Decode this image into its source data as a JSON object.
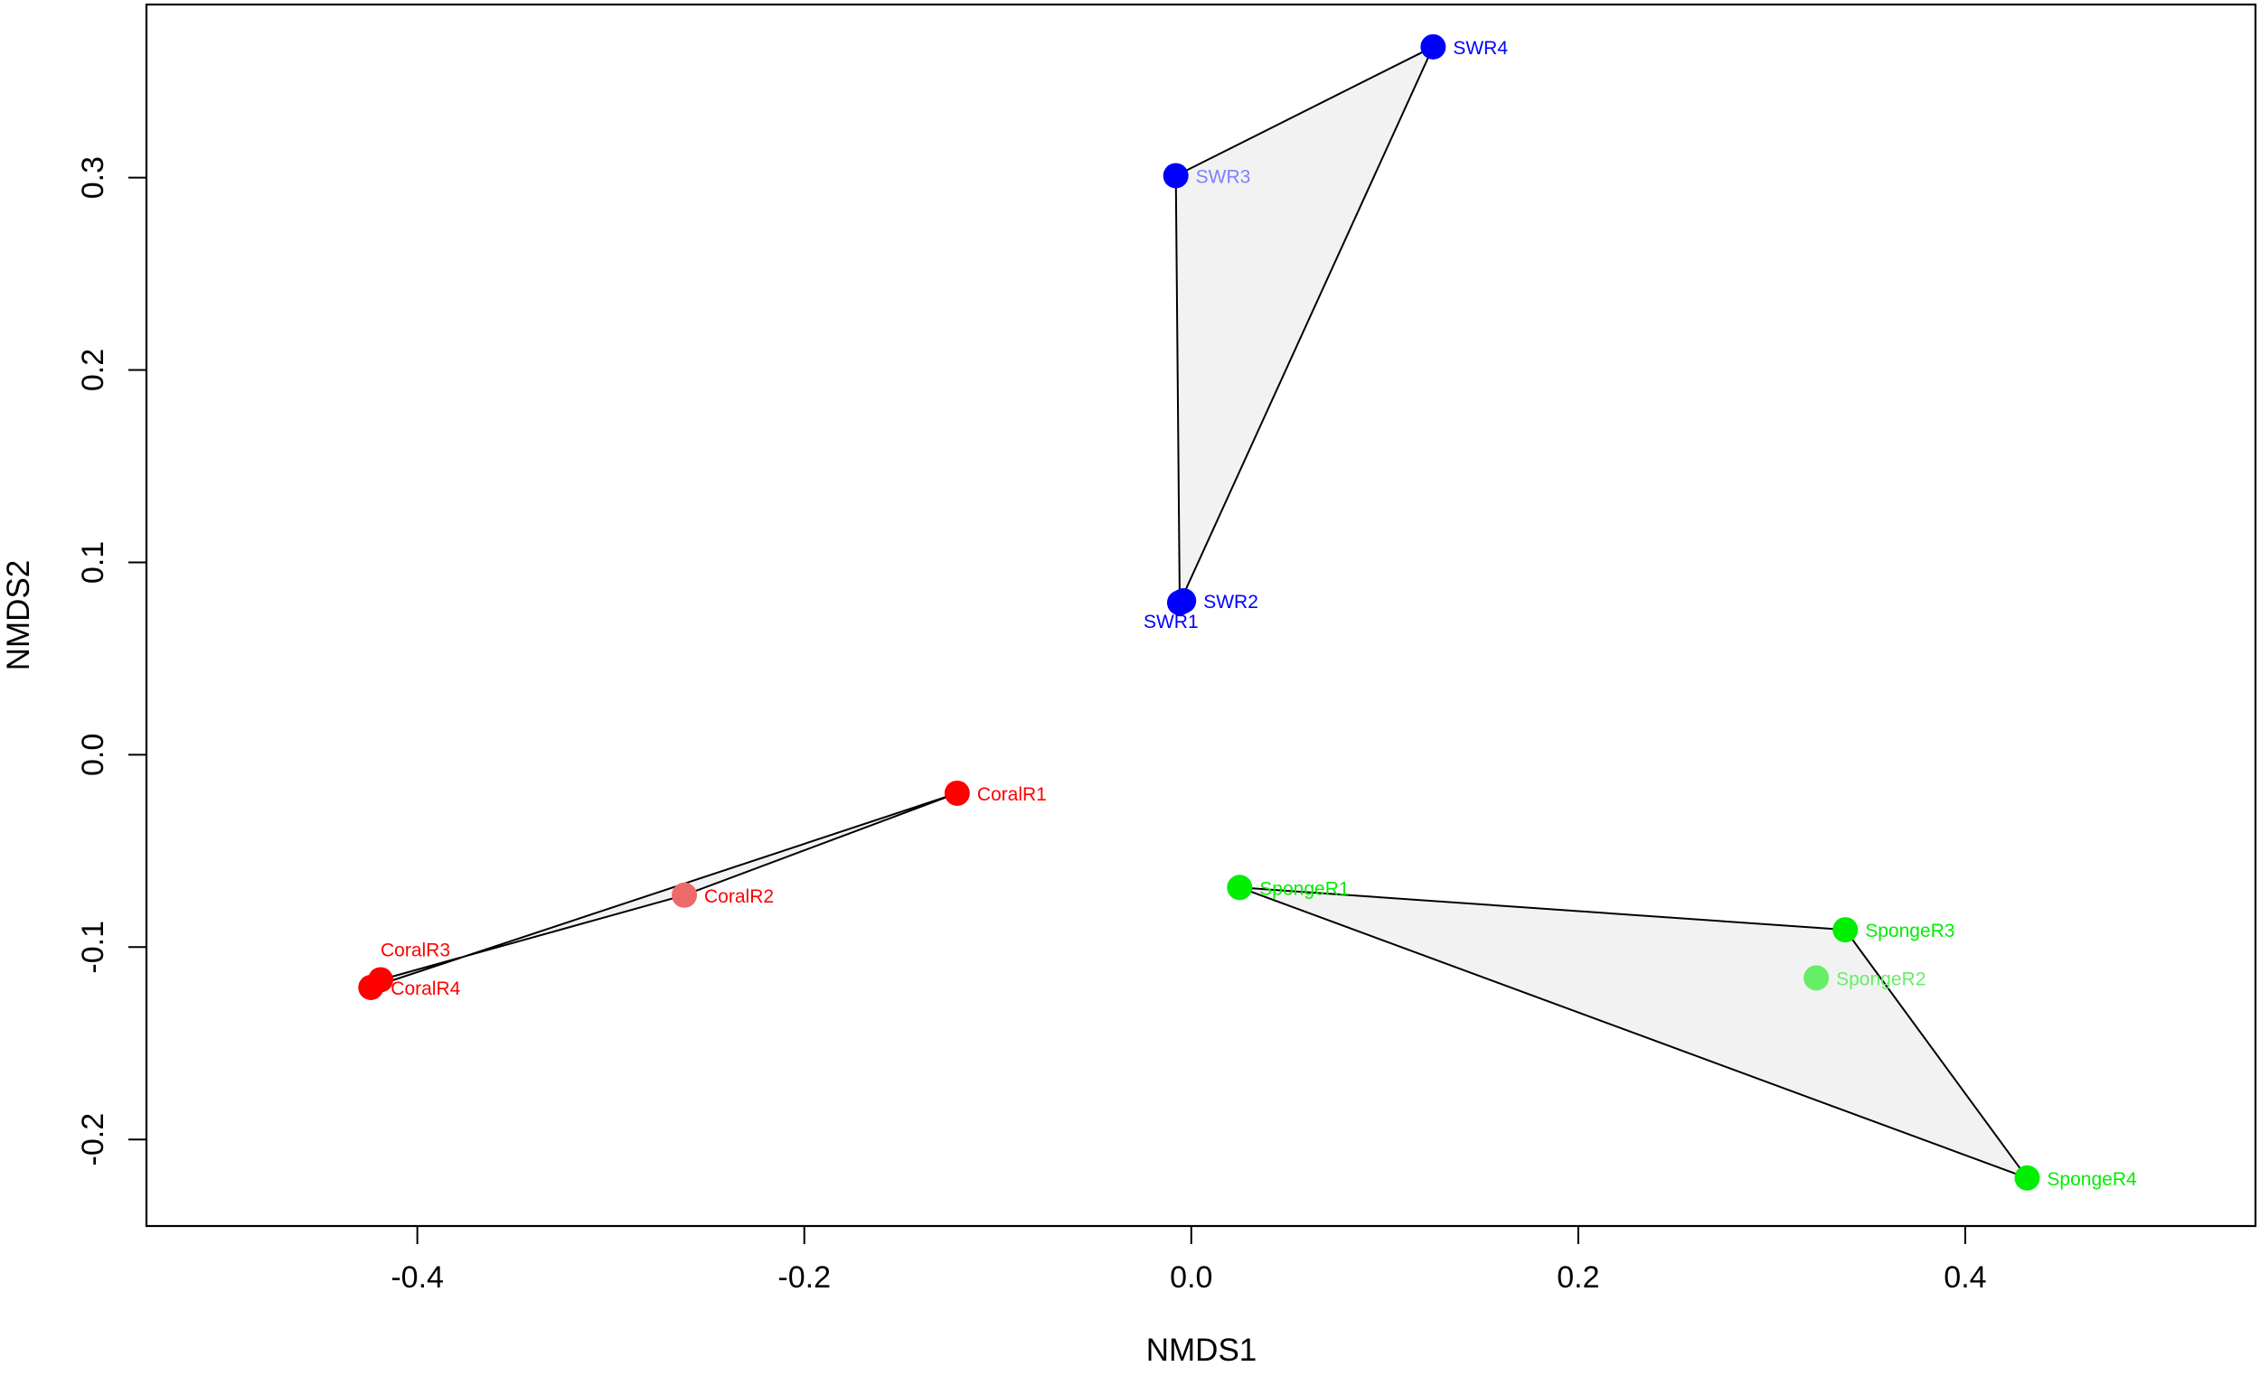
{
  "chart_data": {
    "type": "scatter",
    "title": "",
    "xlabel": "NMDS1",
    "ylabel": "NMDS2",
    "xlim": [
      -0.54,
      0.55
    ],
    "ylim": [
      -0.245,
      0.39
    ],
    "grid": false,
    "legend": "none",
    "x_ticks": [
      {
        "value": -0.4,
        "label": "-0.4"
      },
      {
        "value": -0.2,
        "label": "-0.2"
      },
      {
        "value": 0.0,
        "label": "0.0"
      },
      {
        "value": 0.2,
        "label": "0.2"
      },
      {
        "value": 0.4,
        "label": "0.4"
      }
    ],
    "y_ticks": [
      {
        "value": -0.2,
        "label": "-0.2"
      },
      {
        "value": -0.1,
        "label": "-0.1"
      },
      {
        "value": 0.0,
        "label": "0.0"
      },
      {
        "value": 0.1,
        "label": "0.1"
      },
      {
        "value": 0.2,
        "label": "0.2"
      },
      {
        "value": 0.3,
        "label": "0.3"
      }
    ],
    "groups": [
      {
        "color": "#ff0000",
        "hull_fill": "#f2f2f2",
        "hull": [
          "CoralR1",
          "CoralR2",
          "CoralR3",
          "CoralR4"
        ],
        "points": [
          {
            "label": "CoralR1",
            "x": -0.121,
            "y": -0.02,
            "color": "#ff0000",
            "label_color": "#ff0000",
            "label_pos": "right"
          },
          {
            "label": "CoralR2",
            "x": -0.262,
            "y": -0.073,
            "color": "#ee6a6a",
            "label_color": "#ff0000",
            "label_pos": "right"
          },
          {
            "label": "CoralR3",
            "x": -0.419,
            "y": -0.117,
            "color": "#ff0000",
            "label_color": "#ff0000",
            "label_pos": "above"
          },
          {
            "label": "CoralR4",
            "x": -0.424,
            "y": -0.121,
            "color": "#ff0000",
            "label_color": "#ff0000",
            "label_pos": "right"
          }
        ]
      },
      {
        "color": "#0000ff",
        "hull_fill": "#f2f2f2",
        "hull": [
          "SWR1",
          "SWR3",
          "SWR4"
        ],
        "points": [
          {
            "label": "SWR1",
            "x": -0.006,
            "y": 0.079,
            "color": "#0000ff",
            "label_color": "#0000ff",
            "label_pos": "below"
          },
          {
            "label": "SWR2",
            "x": -0.004,
            "y": 0.08,
            "color": "#0000ff",
            "label_color": "#0000ff",
            "label_pos": "right"
          },
          {
            "label": "SWR3",
            "x": -0.008,
            "y": 0.301,
            "color": "#0000ff",
            "label_color": "#7f7fff",
            "label_pos": "right"
          },
          {
            "label": "SWR4",
            "x": 0.125,
            "y": 0.368,
            "color": "#0000ff",
            "label_color": "#0000ff",
            "label_pos": "right"
          }
        ]
      },
      {
        "color": "#00ee00",
        "hull_fill": "#f2f2f2",
        "hull": [
          "SpongeR1",
          "SpongeR3",
          "SpongeR4"
        ],
        "points": [
          {
            "label": "SpongeR1",
            "x": 0.025,
            "y": -0.069,
            "color": "#00ee00",
            "label_color": "#00ee00",
            "label_pos": "right"
          },
          {
            "label": "SpongeR2",
            "x": 0.323,
            "y": -0.116,
            "color": "#66ee66",
            "label_color": "#66ee66",
            "label_pos": "right"
          },
          {
            "label": "SpongeR3",
            "x": 0.338,
            "y": -0.091,
            "color": "#00ee00",
            "label_color": "#00ee00",
            "label_pos": "right"
          },
          {
            "label": "SpongeR4",
            "x": 0.432,
            "y": -0.22,
            "color": "#00ee00",
            "label_color": "#00ee00",
            "label_pos": "right"
          }
        ]
      }
    ]
  }
}
